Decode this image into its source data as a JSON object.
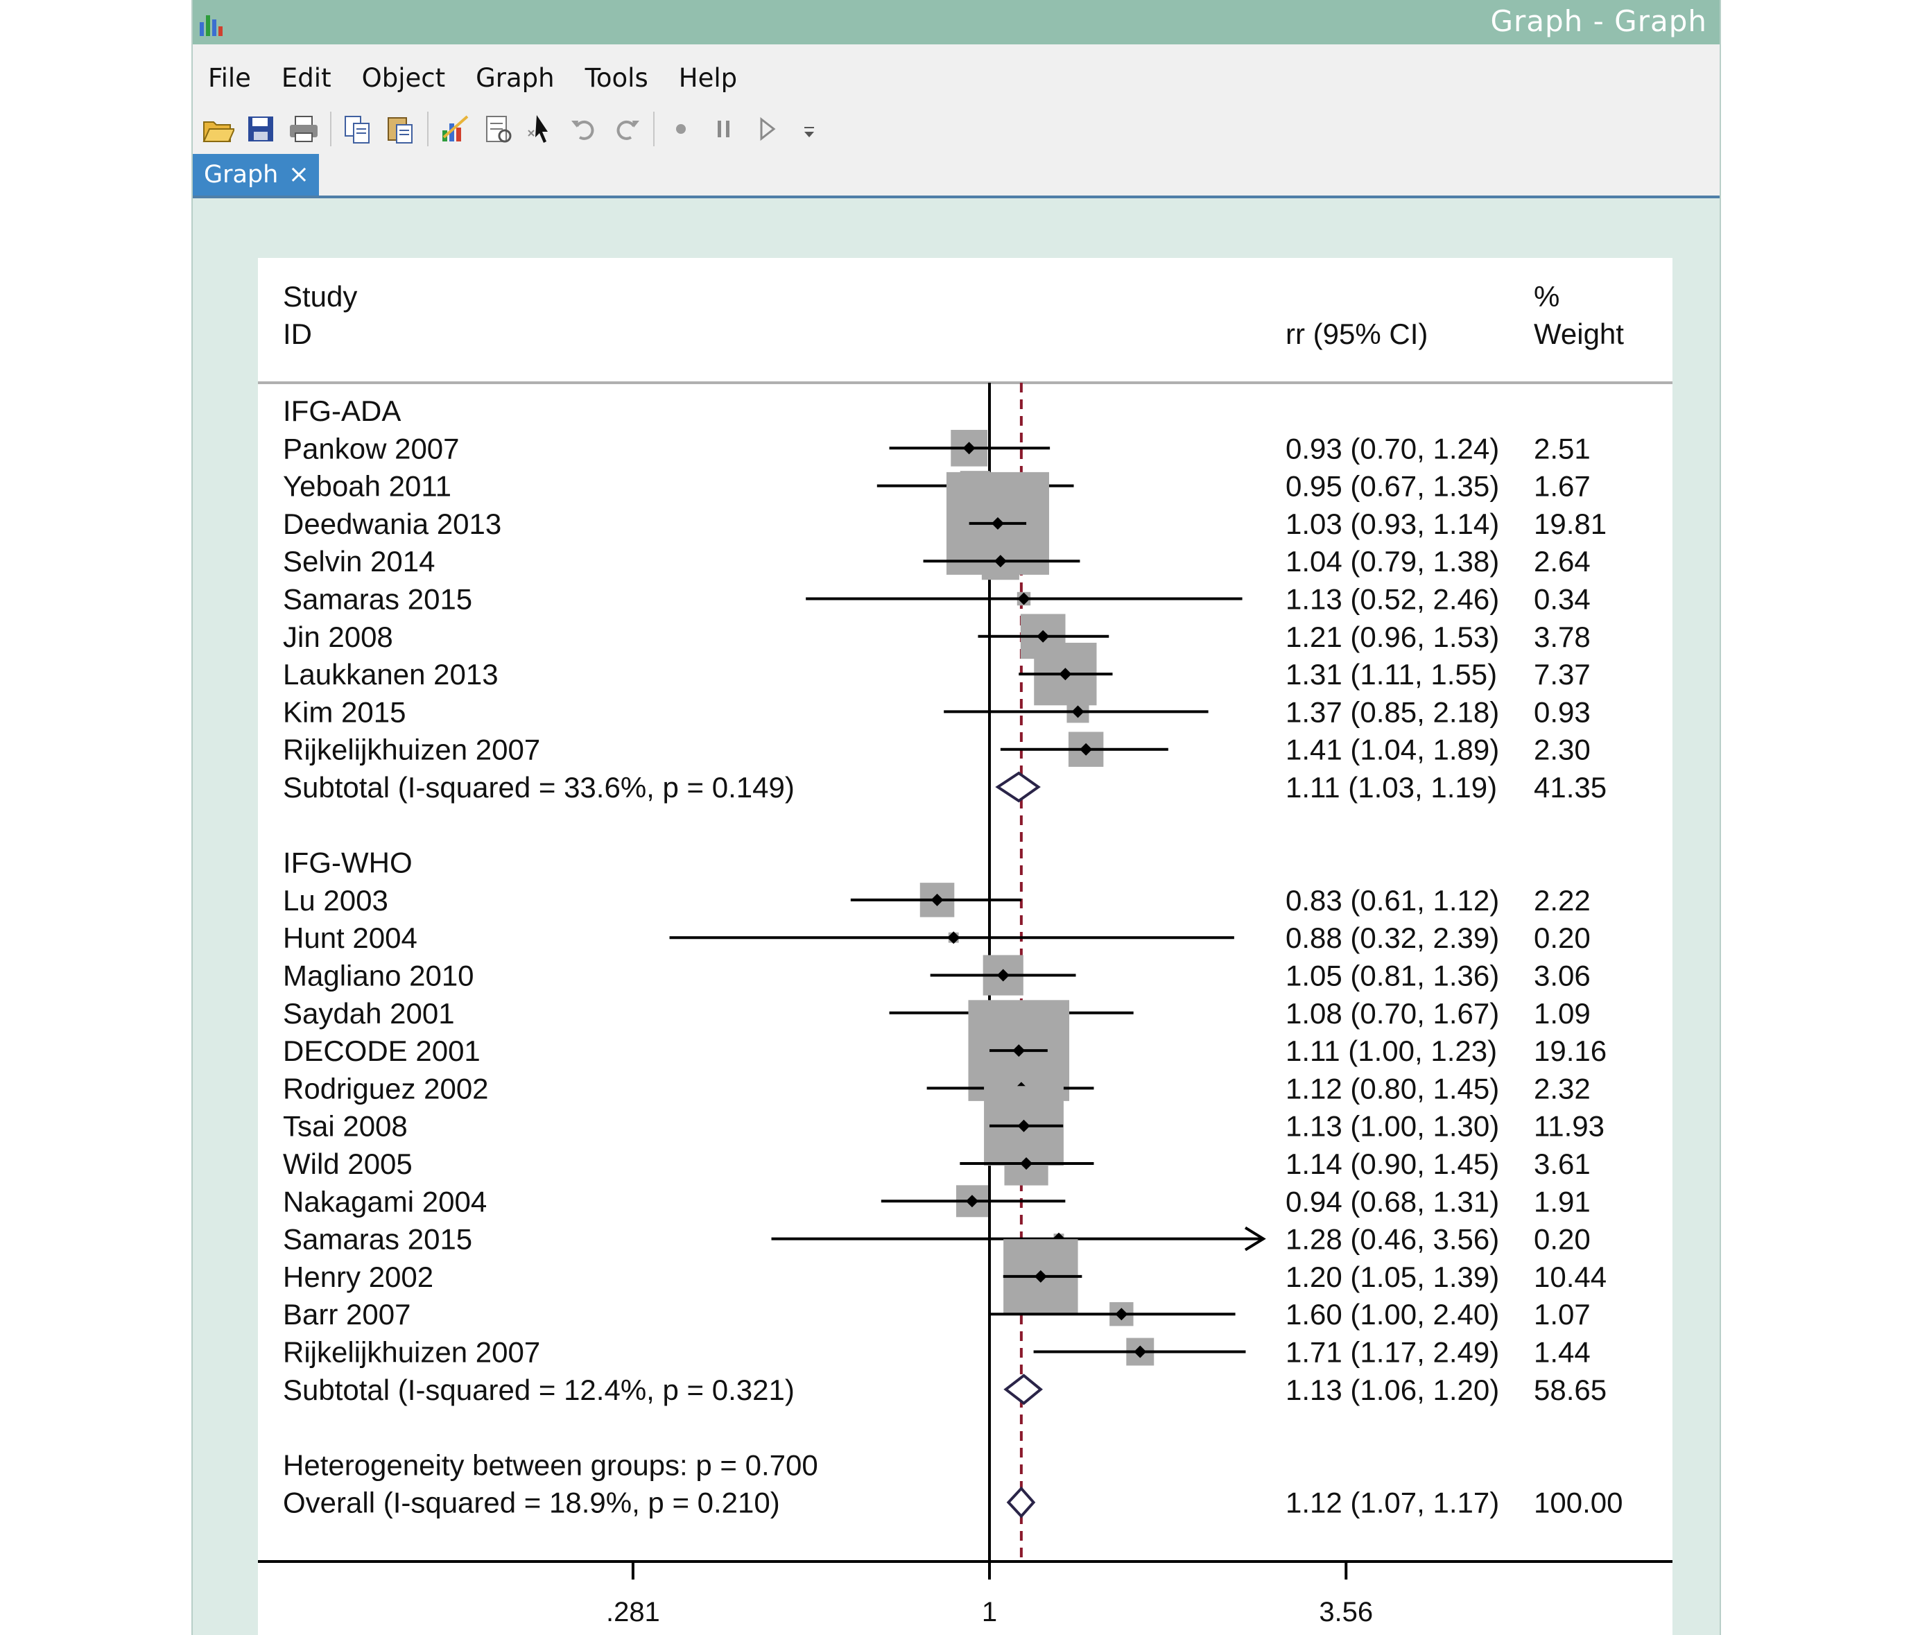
{
  "window": {
    "title": "Graph - Graph"
  },
  "icons": {
    "app": "bar-chart-icon"
  },
  "menu": [
    "File",
    "Edit",
    "Object",
    "Graph",
    "Tools",
    "Help"
  ],
  "toolbar": [
    "open-folder-icon",
    "save-icon",
    "print-icon",
    "sep",
    "copy-icon",
    "paste-icon",
    "sep",
    "graph-editor-icon",
    "properties-icon",
    "pointer-icon",
    "undo-icon",
    "redo-icon",
    "sep",
    "record-icon",
    "pause-icon",
    "play-icon",
    "dropdown-icon"
  ],
  "tab": {
    "label": "Graph",
    "close": "×"
  },
  "colors": {
    "titlebar": "#93bfae",
    "tab": "#3d87c7",
    "box": "#a8a8a8",
    "diamond": "#2a2448",
    "refline": "#8b1a2c"
  },
  "chart_data": {
    "type": "forest",
    "headers": {
      "study_line1": "Study",
      "study_line2": "ID",
      "ci": "rr (95% CI)",
      "weight_line1": "%",
      "weight_line2": "Weight"
    },
    "x_ticks": [
      ".281",
      "1",
      "3.56"
    ],
    "x_tick_values": [
      0.281,
      1,
      3.56
    ],
    "null_value": 1,
    "overall_estimate": 1.12,
    "log_scale": true,
    "rows": [
      {
        "kind": "group",
        "label": "IFG-ADA"
      },
      {
        "kind": "study",
        "label": "Pankow 2007",
        "est": 0.93,
        "lo": 0.7,
        "hi": 1.24,
        "ci": "0.93 (0.70, 1.24)",
        "weight": "2.51"
      },
      {
        "kind": "study",
        "label": "Yeboah 2011",
        "est": 0.95,
        "lo": 0.67,
        "hi": 1.35,
        "ci": "0.95 (0.67, 1.35)",
        "weight": "1.67"
      },
      {
        "kind": "study",
        "label": "Deedwania 2013",
        "est": 1.03,
        "lo": 0.93,
        "hi": 1.14,
        "ci": "1.03 (0.93, 1.14)",
        "weight": "19.81"
      },
      {
        "kind": "study",
        "label": "Selvin 2014",
        "est": 1.04,
        "lo": 0.79,
        "hi": 1.38,
        "ci": "1.04 (0.79, 1.38)",
        "weight": "2.64"
      },
      {
        "kind": "study",
        "label": "Samaras 2015",
        "est": 1.13,
        "lo": 0.52,
        "hi": 2.46,
        "ci": "1.13 (0.52, 2.46)",
        "weight": "0.34"
      },
      {
        "kind": "study",
        "label": "Jin 2008",
        "est": 1.21,
        "lo": 0.96,
        "hi": 1.53,
        "ci": "1.21 (0.96, 1.53)",
        "weight": "3.78"
      },
      {
        "kind": "study",
        "label": "Laukkanen 2013",
        "est": 1.31,
        "lo": 1.11,
        "hi": 1.55,
        "ci": "1.31 (1.11, 1.55)",
        "weight": "7.37"
      },
      {
        "kind": "study",
        "label": "Kim 2015",
        "est": 1.37,
        "lo": 0.85,
        "hi": 2.18,
        "ci": "1.37 (0.85, 2.18)",
        "weight": "0.93"
      },
      {
        "kind": "study",
        "label": "Rijkelijkhuizen 2007",
        "est": 1.41,
        "lo": 1.04,
        "hi": 1.89,
        "ci": "1.41 (1.04, 1.89)",
        "weight": "2.30"
      },
      {
        "kind": "subtotal",
        "label": "Subtotal  (I-squared = 33.6%, p = 0.149)",
        "est": 1.11,
        "lo": 1.03,
        "hi": 1.19,
        "ci": "1.11 (1.03, 1.19)",
        "weight": "41.35"
      },
      {
        "kind": "blank"
      },
      {
        "kind": "group",
        "label": "IFG-WHO"
      },
      {
        "kind": "study",
        "label": "Lu 2003",
        "est": 0.83,
        "lo": 0.61,
        "hi": 1.12,
        "ci": "0.83 (0.61, 1.12)",
        "weight": "2.22"
      },
      {
        "kind": "study",
        "label": "Hunt 2004",
        "est": 0.88,
        "lo": 0.32,
        "hi": 2.39,
        "ci": "0.88 (0.32, 2.39)",
        "weight": "0.20"
      },
      {
        "kind": "study",
        "label": "Magliano 2010",
        "est": 1.05,
        "lo": 0.81,
        "hi": 1.36,
        "ci": "1.05 (0.81, 1.36)",
        "weight": "3.06"
      },
      {
        "kind": "study",
        "label": "Saydah 2001",
        "est": 1.08,
        "lo": 0.7,
        "hi": 1.67,
        "ci": "1.08 (0.70, 1.67)",
        "weight": "1.09"
      },
      {
        "kind": "study",
        "label": "DECODE 2001",
        "est": 1.11,
        "lo": 1.0,
        "hi": 1.23,
        "ci": "1.11 (1.00, 1.23)",
        "weight": "19.16"
      },
      {
        "kind": "study",
        "label": "Rodriguez 2002",
        "est": 1.12,
        "lo": 0.8,
        "hi": 1.45,
        "ci": "1.12 (0.80, 1.45)",
        "weight": "2.32"
      },
      {
        "kind": "study",
        "label": "Tsai 2008",
        "est": 1.13,
        "lo": 1.0,
        "hi": 1.3,
        "ci": "1.13 (1.00, 1.30)",
        "weight": "11.93"
      },
      {
        "kind": "study",
        "label": "Wild 2005",
        "est": 1.14,
        "lo": 0.9,
        "hi": 1.45,
        "ci": "1.14 (0.90, 1.45)",
        "weight": "3.61"
      },
      {
        "kind": "study",
        "label": "Nakagami 2004",
        "est": 0.94,
        "lo": 0.68,
        "hi": 1.31,
        "ci": "0.94 (0.68, 1.31)",
        "weight": "1.91"
      },
      {
        "kind": "study",
        "label": "Samaras 2015",
        "est": 1.28,
        "lo": 0.46,
        "hi": 3.56,
        "ci": "1.28 (0.46, 3.56)",
        "weight": "0.20",
        "arrow_right": true
      },
      {
        "kind": "study",
        "label": "Henry 2002",
        "est": 1.2,
        "lo": 1.05,
        "hi": 1.39,
        "ci": "1.20 (1.05, 1.39)",
        "weight": "10.44"
      },
      {
        "kind": "study",
        "label": "Barr 2007",
        "est": 1.6,
        "lo": 1.0,
        "hi": 2.4,
        "ci": "1.60 (1.00, 2.40)",
        "weight": "1.07"
      },
      {
        "kind": "study",
        "label": "Rijkelijkhuizen 2007",
        "est": 1.71,
        "lo": 1.17,
        "hi": 2.49,
        "ci": "1.71 (1.17, 2.49)",
        "weight": "1.44"
      },
      {
        "kind": "subtotal",
        "label": "Subtotal  (I-squared = 12.4%, p = 0.321)",
        "est": 1.13,
        "lo": 1.06,
        "hi": 1.2,
        "ci": "1.13 (1.06, 1.20)",
        "weight": "58.65"
      },
      {
        "kind": "blank"
      },
      {
        "kind": "text",
        "label": "Heterogeneity between groups: p = 0.700"
      },
      {
        "kind": "subtotal",
        "label": "Overall  (I-squared = 18.9%, p = 0.210)",
        "est": 1.12,
        "lo": 1.07,
        "hi": 1.17,
        "ci": "1.12 (1.07, 1.17)",
        "weight": "100.00"
      }
    ]
  }
}
